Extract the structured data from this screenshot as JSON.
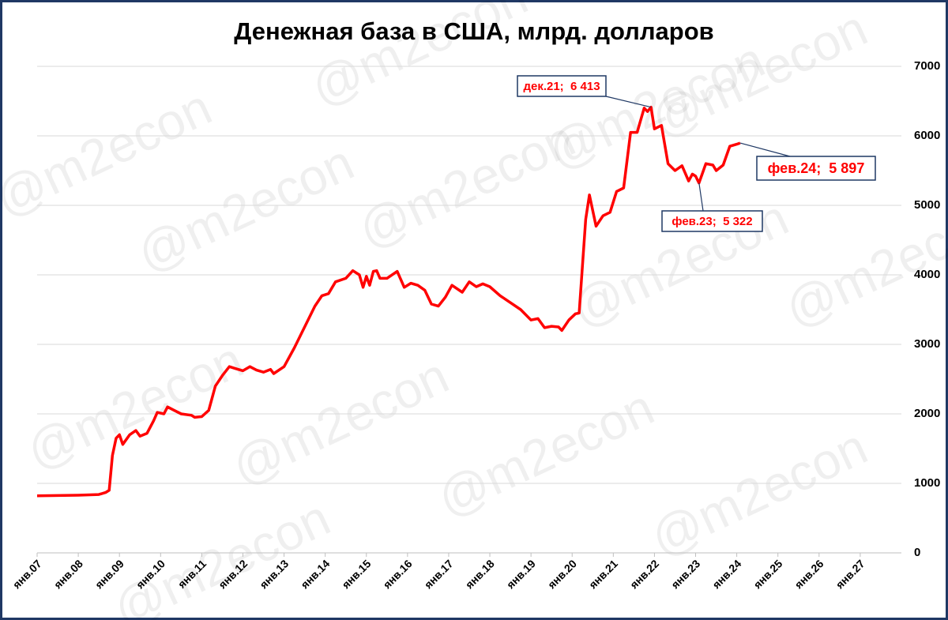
{
  "chart_data": {
    "type": "line",
    "title": "Денежная база в США, млрд. долларов",
    "watermark": "@m2econ",
    "color": "#ff0000",
    "grid": true,
    "xlim": [
      2007,
      2028
    ],
    "ylim": [
      0,
      7000
    ],
    "yticks": [
      0,
      1000,
      2000,
      3000,
      4000,
      5000,
      6000,
      7000
    ],
    "xticks": [
      {
        "value": 2007,
        "label": "янв.07"
      },
      {
        "value": 2008,
        "label": "янв.08"
      },
      {
        "value": 2009,
        "label": "янв.09"
      },
      {
        "value": 2010,
        "label": "янв.10"
      },
      {
        "value": 2011,
        "label": "янв.11"
      },
      {
        "value": 2012,
        "label": "янв.12"
      },
      {
        "value": 2013,
        "label": "янв.13"
      },
      {
        "value": 2014,
        "label": "янв.14"
      },
      {
        "value": 2015,
        "label": "янв.15"
      },
      {
        "value": 2016,
        "label": "янв.16"
      },
      {
        "value": 2017,
        "label": "янв.17"
      },
      {
        "value": 2018,
        "label": "янв.18"
      },
      {
        "value": 2019,
        "label": "янв.19"
      },
      {
        "value": 2020,
        "label": "янв.20"
      },
      {
        "value": 2021,
        "label": "янв.21"
      },
      {
        "value": 2022,
        "label": "янв.22"
      },
      {
        "value": 2023,
        "label": "янв.23"
      },
      {
        "value": 2024,
        "label": "янв.24"
      },
      {
        "value": 2025,
        "label": "янв.25"
      },
      {
        "value": 2026,
        "label": "янв.26"
      },
      {
        "value": 2027,
        "label": "янв.27"
      }
    ],
    "x": [
      2007.0,
      2007.5,
      2008.0,
      2008.5,
      2008.67,
      2008.75,
      2008.83,
      2008.92,
      2009.0,
      2009.08,
      2009.25,
      2009.4,
      2009.5,
      2009.67,
      2009.83,
      2009.92,
      2010.08,
      2010.17,
      2010.33,
      2010.5,
      2010.75,
      2010.83,
      2011.0,
      2011.17,
      2011.33,
      2011.5,
      2011.67,
      2011.83,
      2012.0,
      2012.17,
      2012.33,
      2012.5,
      2012.67,
      2012.75,
      2013.0,
      2013.25,
      2013.5,
      2013.75,
      2013.92,
      2014.08,
      2014.25,
      2014.5,
      2014.67,
      2014.83,
      2014.92,
      2015.0,
      2015.08,
      2015.17,
      2015.25,
      2015.33,
      2015.5,
      2015.75,
      2015.92,
      2016.08,
      2016.25,
      2016.42,
      2016.58,
      2016.75,
      2016.92,
      2017.08,
      2017.33,
      2017.5,
      2017.67,
      2017.83,
      2018.0,
      2018.25,
      2018.5,
      2018.75,
      2019.0,
      2019.17,
      2019.33,
      2019.5,
      2019.67,
      2019.75,
      2019.92,
      2020.08,
      2020.17,
      2020.33,
      2020.42,
      2020.58,
      2020.75,
      2020.92,
      2021.08,
      2021.25,
      2021.42,
      2021.58,
      2021.75,
      2021.83,
      2021.917,
      2022.0,
      2022.17,
      2022.33,
      2022.5,
      2022.67,
      2022.83,
      2022.92,
      2023.0,
      2023.083,
      2023.25,
      2023.42,
      2023.5,
      2023.67,
      2023.83,
      2024.0,
      2024.083
    ],
    "values": [
      820,
      825,
      830,
      840,
      870,
      900,
      1400,
      1650,
      1700,
      1560,
      1700,
      1760,
      1680,
      1720,
      1900,
      2020,
      2000,
      2100,
      2050,
      2000,
      1980,
      1950,
      1960,
      2050,
      2400,
      2550,
      2680,
      2650,
      2620,
      2680,
      2630,
      2600,
      2640,
      2580,
      2680,
      2950,
      3250,
      3550,
      3700,
      3730,
      3900,
      3950,
      4060,
      4000,
      3820,
      3980,
      3850,
      4050,
      4060,
      3950,
      3950,
      4050,
      3820,
      3880,
      3850,
      3780,
      3580,
      3550,
      3680,
      3850,
      3750,
      3900,
      3830,
      3870,
      3830,
      3700,
      3600,
      3500,
      3350,
      3370,
      3240,
      3260,
      3250,
      3200,
      3350,
      3440,
      3450,
      4800,
      5150,
      4700,
      4850,
      4900,
      5200,
      5250,
      6050,
      6050,
      6400,
      6350,
      6413,
      6100,
      6150,
      5600,
      5500,
      5570,
      5350,
      5450,
      5420,
      5322,
      5600,
      5580,
      5500,
      5580,
      5850,
      5880,
      5897
    ],
    "annotations": [
      {
        "text": "дек.21;  6 413",
        "x": 2021.917,
        "y": 6413
      },
      {
        "text": "фев.23;  5 322",
        "x": 2023.083,
        "y": 5322
      },
      {
        "text": "фев.24;  5 897",
        "x": 2024.083,
        "y": 5897
      }
    ]
  }
}
